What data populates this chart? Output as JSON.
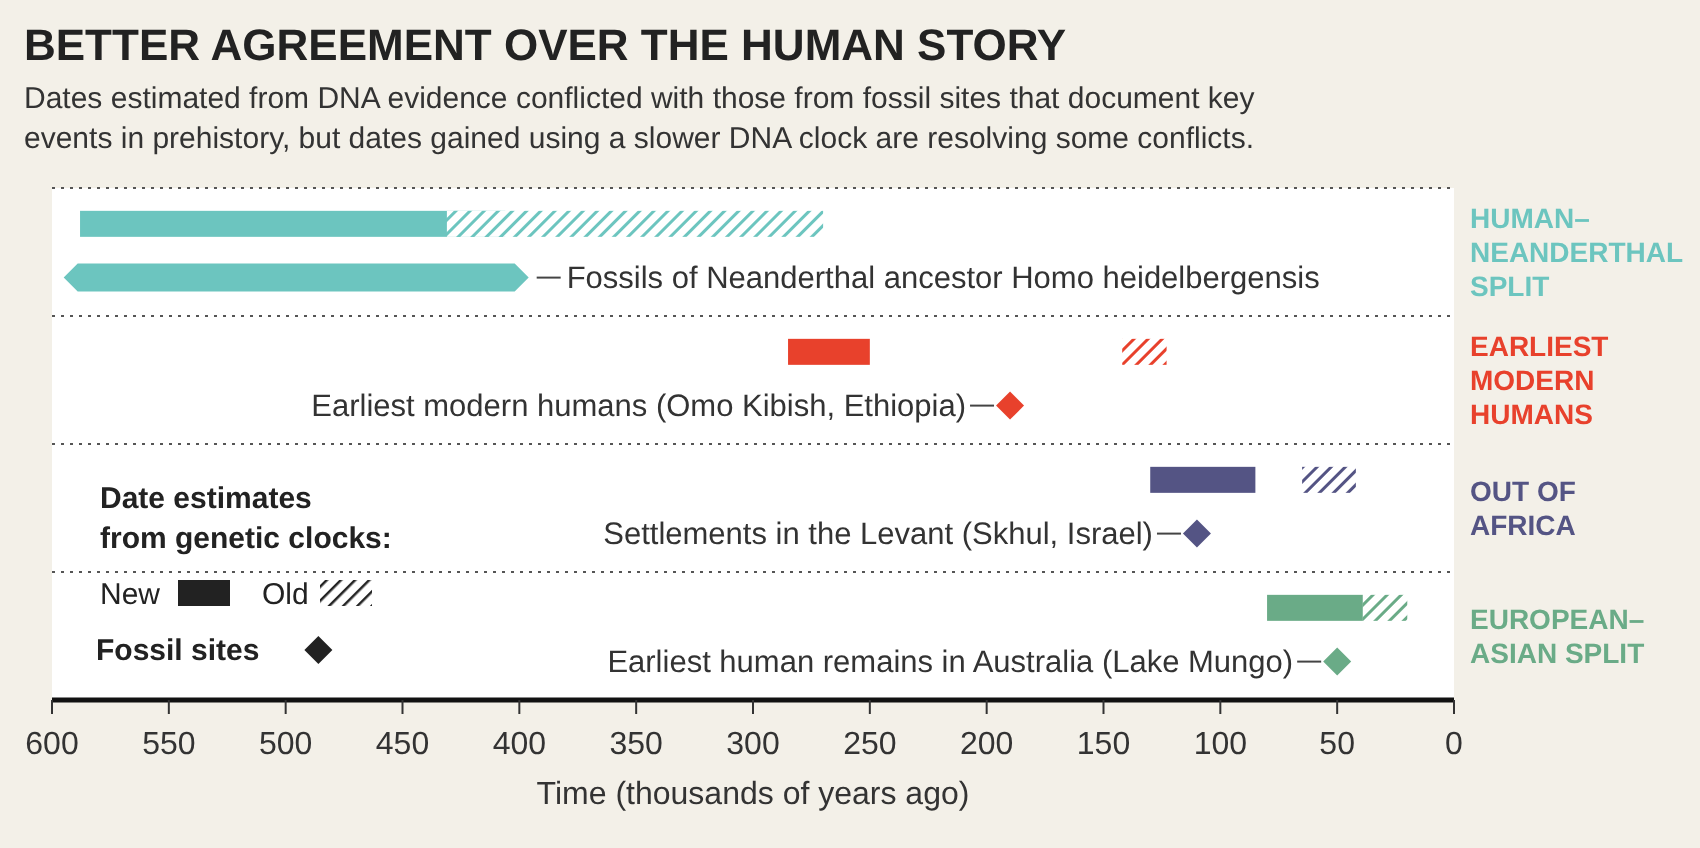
{
  "chart_data": {
    "type": "bar",
    "orientation": "horizontal",
    "title": "BETTER AGREEMENT OVER THE HUMAN STORY",
    "subtitle": "Dates estimated from DNA evidence conflicted with those from fossil sites that document key events in prehistory, but dates gained using a slower DNA clock are resolving some conflicts.",
    "xlabel": "Time (thousands of years ago)",
    "categories": [
      "HUMAN–NEANDERTHAL SPLIT",
      "EARLIEST MODERN HUMANS",
      "OUT OF AFRICA",
      "EUROPEAN–ASIAN SPLIT"
    ],
    "xlim": [
      600,
      0
    ],
    "xticks": [
      600,
      550,
      500,
      450,
      400,
      350,
      300,
      250,
      200,
      150,
      100,
      50,
      0
    ],
    "series": [
      {
        "colors": [
          "#6cc5bf",
          "#e8412c",
          "#545484",
          "#6aab87"
        ],
        "base": [
          406,
          250,
          85,
          39
        ],
        "values": [
          182,
          35,
          45,
          41
        ]
      },
      {
        "colors": [
          "#6cc5bf",
          "#e8412c",
          "#545484",
          "#6aab87"
        ],
        "base": [
          270,
          123,
          42,
          20
        ],
        "values": [
          161,
          19,
          23,
          19
        ]
      },
      {
        "marker": "diamond",
        "colors": [
          "#6cc5bf",
          null,
          null,
          null
        ],
        "base": [
          396,
          null,
          null,
          null
        ],
        "values": [
          199,
          null,
          null,
          null
        ]
      },
      {
        "type": "scatter",
        "marker": "diamond",
        "colors": [
          null,
          "#e8412c",
          "#545484",
          "#6aab87"
        ],
        "values": [
          null,
          190,
          110,
          50
        ]
      }
    ],
    "annotations": [
      "Fossils of Neanderthal ancestor Homo heidelbergensis",
      "Earliest modern humans (Omo Kibish, Ethiopia)",
      "Settlements in the Levant (Skhul, Israel)",
      "Earliest human remains in Australia (Lake Mungo)",
      "Date estimates from genetic clocks:",
      "New",
      "Old",
      "Fossil sites"
    ]
  }
}
